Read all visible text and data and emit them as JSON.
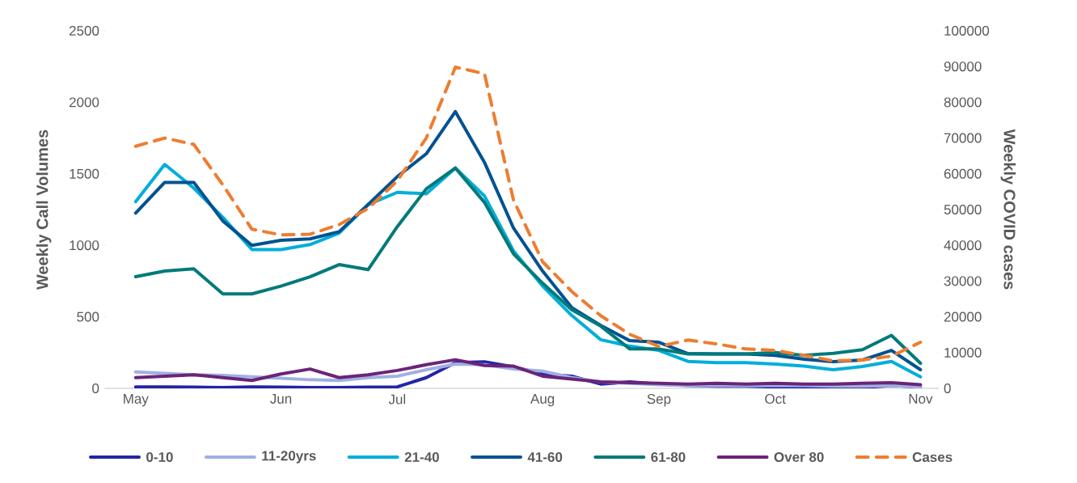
{
  "chart_data": {
    "type": "line",
    "categories": [
      "May",
      null,
      null,
      null,
      null,
      "Jun",
      null,
      null,
      null,
      "Jul",
      null,
      null,
      null,
      null,
      "Aug",
      null,
      null,
      null,
      "Sep",
      null,
      null,
      null,
      "Oct",
      null,
      null,
      null,
      null,
      "Nov"
    ],
    "ylabel": "Weekly Call Volumes",
    "y2label": "Weekly COVID cases",
    "ylim": [
      0,
      2500
    ],
    "yticks": [
      0,
      500,
      1000,
      1500,
      2000,
      2500
    ],
    "y2lim": [
      0,
      100000
    ],
    "y2ticks": [
      0,
      10000,
      20000,
      30000,
      40000,
      50000,
      60000,
      70000,
      80000,
      90000,
      100000
    ],
    "legend": "bottom",
    "grid": false,
    "series": [
      {
        "name": "0-10",
        "color": "#2424a8",
        "values": [
          10,
          10,
          8,
          5,
          10,
          8,
          5,
          5,
          8,
          10,
          75,
          180,
          185,
          150,
          100,
          85,
          30,
          45,
          30,
          20,
          15,
          15,
          10,
          5,
          0,
          5,
          20,
          10
        ]
      },
      {
        "name": "11-20yrs",
        "color": "#a0b0e4",
        "values": [
          115,
          105,
          95,
          90,
          80,
          70,
          60,
          55,
          75,
          85,
          130,
          170,
          165,
          135,
          120,
          75,
          45,
          35,
          25,
          20,
          20,
          20,
          20,
          20,
          15,
          15,
          20,
          10
        ]
      },
      {
        "name": "21-40",
        "color": "#00aedb",
        "values": [
          1305,
          1565,
          1400,
          1195,
          970,
          970,
          1005,
          1085,
          1285,
          1370,
          1360,
          1540,
          1345,
          960,
          715,
          510,
          340,
          295,
          265,
          188,
          180,
          180,
          170,
          155,
          130,
          153,
          188,
          80
        ]
      },
      {
        "name": "41-60",
        "color": "#005291",
        "values": [
          1225,
          1440,
          1440,
          1170,
          1000,
          1035,
          1045,
          1095,
          1285,
          1480,
          1640,
          1935,
          1580,
          1120,
          820,
          565,
          440,
          333,
          322,
          243,
          240,
          240,
          231,
          203,
          186,
          198,
          265,
          130
        ]
      },
      {
        "name": "61-80",
        "color": "#007a7a",
        "values": [
          780,
          820,
          835,
          660,
          660,
          715,
          780,
          865,
          830,
          1130,
          1395,
          1540,
          1300,
          940,
          735,
          550,
          435,
          275,
          275,
          240,
          240,
          240,
          250,
          230,
          245,
          270,
          370,
          175
        ]
      },
      {
        "name": "Over 80",
        "color": "#6b2478",
        "values": [
          75,
          85,
          95,
          75,
          55,
          100,
          135,
          75,
          95,
          125,
          165,
          200,
          160,
          155,
          85,
          65,
          45,
          40,
          35,
          30,
          35,
          30,
          35,
          30,
          30,
          35,
          40,
          25
        ]
      },
      {
        "name": "Cases",
        "color": "#ed7d31",
        "axis": "y2",
        "line_style": "dashed",
        "values": [
          67700,
          70000,
          68200,
          56900,
          44500,
          42900,
          43100,
          45800,
          50300,
          58000,
          70000,
          89800,
          88000,
          52600,
          35400,
          27100,
          20300,
          15100,
          11700,
          13500,
          12400,
          11000,
          10600,
          9200,
          7700,
          7900,
          9000,
          12900
        ]
      }
    ]
  }
}
